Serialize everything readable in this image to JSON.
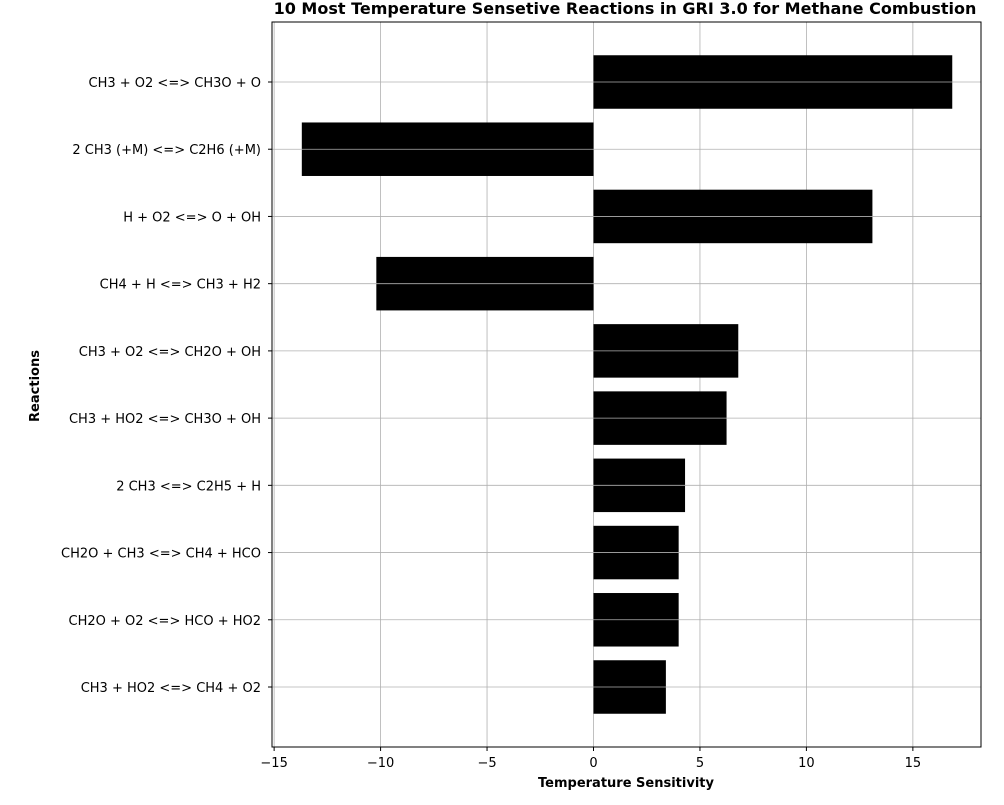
{
  "chart_data": {
    "type": "bar",
    "orientation": "horizontal",
    "title": "10 Most Temperature Sensetive Reactions in GRI 3.0 for Methane Combustion",
    "xlabel": "Temperature Sensitivity",
    "ylabel": "Reactions",
    "categories": [
      "CH3 + O2 <=> CH3O + O",
      "2 CH3 (+M) <=> C2H6 (+M)",
      "H + O2 <=> O + OH",
      "CH4 + H <=> CH3 + H2",
      "CH3 + O2 <=> CH2O + OH",
      "CH3 + HO2 <=> CH3O + OH",
      "2 CH3 <=> C2H5 + H",
      "CH2O + CH3 <=> CH4 + HCO",
      "CH2O + O2 <=> HCO + HO2",
      "CH3 + HO2 <=> CH4 + O2"
    ],
    "values": [
      16.85,
      -13.7,
      13.1,
      -10.2,
      6.8,
      6.25,
      4.3,
      4.0,
      4.0,
      3.4
    ],
    "xlim": [
      -15.1,
      18.2
    ],
    "xticks": [
      -15,
      -10,
      -5,
      0,
      5,
      10,
      15
    ],
    "xtick_labels": [
      "−15",
      "−10",
      "−5",
      "0",
      "5",
      "10",
      "15"
    ],
    "bar_color": "#000000",
    "grid": true
  }
}
